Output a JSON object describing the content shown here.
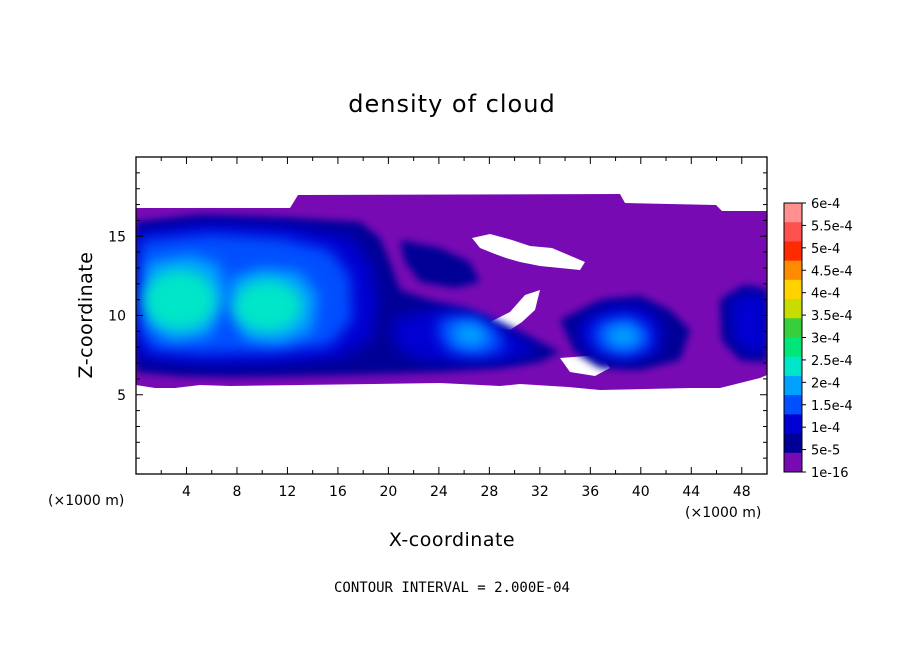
{
  "chart_data": {
    "type": "heatmap",
    "title": "density of cloud",
    "xlabel": "X-coordinate",
    "ylabel": "Z-coordinate",
    "x_unit": "(×1000 m)",
    "y_unit": "(×1000 m)",
    "xlim": [
      0,
      50
    ],
    "ylim": [
      0,
      20
    ],
    "x_ticks": [
      "4",
      "8",
      "12",
      "16",
      "20",
      "24",
      "28",
      "32",
      "36",
      "40",
      "44",
      "48"
    ],
    "y_ticks": [
      "5",
      "10",
      "15"
    ],
    "x_tick_values": [
      4,
      8,
      12,
      16,
      20,
      24,
      28,
      32,
      36,
      40,
      44,
      48
    ],
    "y_tick_values": [
      5,
      10,
      15
    ],
    "footer": "CONTOUR INTERVAL = 2.000E-04",
    "colorbar": {
      "labels": [
        "6e-4",
        "5.5e-4",
        "5e-4",
        "4.5e-4",
        "4e-4",
        "3.5e-4",
        "3e-4",
        "2.5e-4",
        "2e-4",
        "1.5e-4",
        "1e-4",
        "5e-5",
        "1e-16"
      ],
      "colors": [
        "#ff9090",
        "#ff5050",
        "#ff2a00",
        "#ff8c00",
        "#ffd200",
        "#c8dc00",
        "#37d03c",
        "#00e678",
        "#00e6c8",
        "#00a0ff",
        "#0050ff",
        "#0000d2",
        "#000096",
        "#780ab4"
      ]
    },
    "regions": {
      "cloud_layer_z": [
        5.2,
        17.3
      ],
      "dense_cores": [
        {
          "x": 3,
          "z": 10.5
        },
        {
          "x": 11,
          "z": 10.5
        },
        {
          "x": 26,
          "z": 8.5
        },
        {
          "x": 39,
          "z": 8.5
        }
      ]
    }
  }
}
